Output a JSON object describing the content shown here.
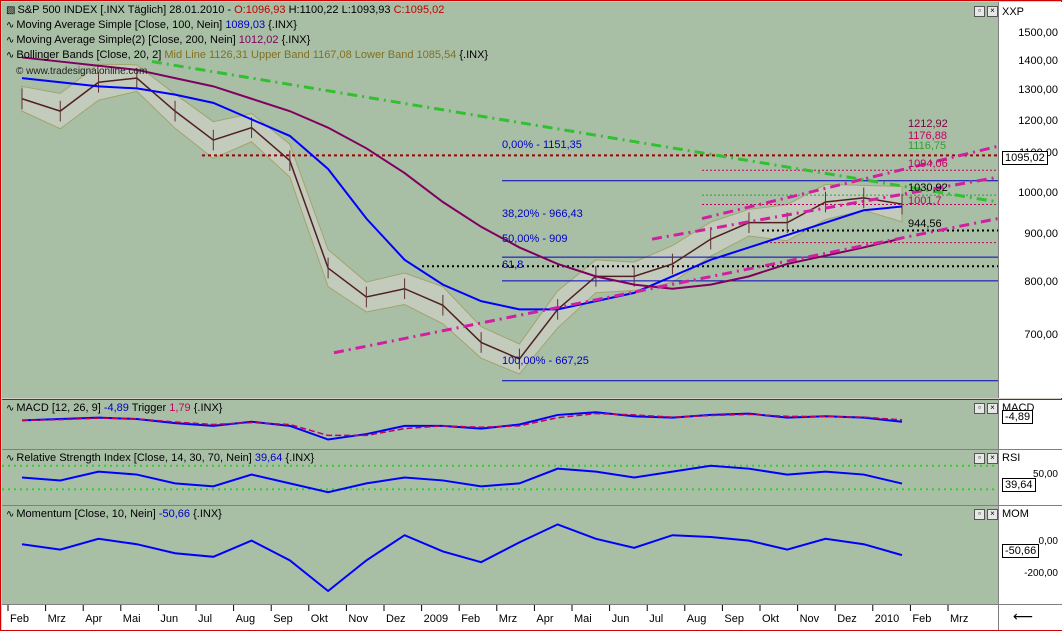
{
  "main_pane": {
    "legend": [
      {
        "icon": "candle-icon",
        "text": "S&P 500 INDEX [.INX  Täglich] 28.01.2010 - ",
        "parts": [
          {
            "label": "O:",
            "value": "1096,93",
            "color": "#c00000"
          },
          {
            "label": " H:",
            "value": "1100,22",
            "color": "#000000"
          },
          {
            "label": " L:",
            "value": "1093,93",
            "color": "#000000"
          },
          {
            "label": " C:",
            "value": "1095,02",
            "color": "#c00000"
          }
        ]
      },
      {
        "icon": "line-icon",
        "text": "Moving Average Simple [Close, 100, Nein] ",
        "value": "1089,03",
        "value_color": "#0000c0",
        "suffix": " {.INX}"
      },
      {
        "icon": "line-icon",
        "text": "Moving Average Simple(2) [Close, 200, Nein] ",
        "value": "1012,02",
        "value_color": "#800060",
        "suffix": " {.INX}"
      },
      {
        "icon": "line-icon",
        "text": "Bollinger Bands [Close, 20, 2] ",
        "value": "Mid Line 1126,31 Upper Band 1167,08 Lower Band 1085,54",
        "value_color": "#807020",
        "suffix": " {.INX}"
      }
    ],
    "watermark": "© www.tradesignalonline.com",
    "fib_labels": [
      "0,00% - 1151,35",
      "38,20% - 966,43",
      "50,00% - 909",
      "61,8",
      "100,00% - 667,25"
    ],
    "level_labels": [
      {
        "text": "1212,92",
        "color": "#800040"
      },
      {
        "text": "1176,88",
        "color": "#c00060"
      },
      {
        "text": "1116,75",
        "color": "#30a030"
      },
      {
        "text": "1094,06",
        "color": "#c00060"
      },
      {
        "text": "1030,92",
        "color": "#000000"
      },
      {
        "text": "1001,7",
        "color": "#c00060"
      },
      {
        "text": "944,56",
        "color": "#000000"
      }
    ]
  },
  "axis_main": {
    "name": "XXP",
    "ticks": [
      "1500,00",
      "1400,00",
      "1300,00",
      "1200,00",
      "1100,00",
      "1000,00",
      "900,00",
      "800,00",
      "700,00"
    ],
    "last": "1095,02"
  },
  "macd_pane": {
    "legend": "MACD [12, 26, 9] ",
    "value": "-4,89",
    "trigger": " Trigger ",
    "trigger_value": "1,79",
    "suffix": " {.INX}",
    "axis_name": "MACD",
    "last": "-4,89"
  },
  "rsi_pane": {
    "legend": "Relative Strength Index [Close, 14, 30, 70, Nein] ",
    "value": "39,64",
    "suffix": " {.INX}",
    "axis_name": "RSI",
    "tick": "50,00",
    "last": "39,64"
  },
  "mom_pane": {
    "legend": "Momentum [Close, 10, Nein] ",
    "value": "-50,66",
    "suffix": " {.INX}",
    "axis_name": "MOM",
    "ticks": [
      "0,00",
      "-200,00"
    ],
    "last": "-50,66"
  },
  "x_axis": {
    "labels": [
      "Feb",
      "Mrz",
      "Apr",
      "Mai",
      "Jun",
      "Jul",
      "Aug",
      "Sep",
      "Okt",
      "Nov",
      "Dez",
      "2009",
      "Feb",
      "Mrz",
      "Apr",
      "Mai",
      "Jun",
      "Jul",
      "Aug",
      "Sep",
      "Okt",
      "Nov",
      "Dez",
      "2010",
      "Feb",
      "Mrz"
    ]
  },
  "colors": {
    "pane_bg": "#a8bfa6",
    "ma100": "#0000ff",
    "ma200": "#800060",
    "boll": "#a0a060",
    "trend": "#d020a0",
    "green_trend": "#30c030",
    "resist": "#a00000"
  },
  "chart_data": [
    {
      "type": "line",
      "title": "S&P 500 INDEX [.INX  Täglich]",
      "x": [
        "2008-02",
        "2008-03",
        "2008-04",
        "2008-05",
        "2008-06",
        "2008-07",
        "2008-08",
        "2008-09",
        "2008-10",
        "2008-11",
        "2008-12",
        "2009-01",
        "2009-02",
        "2009-03",
        "2009-04",
        "2009-05",
        "2009-06",
        "2009-07",
        "2009-08",
        "2009-09",
        "2009-10",
        "2009-11",
        "2009-12",
        "2010-01"
      ],
      "series": [
        {
          "name": "S&P 500 INDEX",
          "values": [
            1350,
            1320,
            1390,
            1400,
            1320,
            1250,
            1280,
            1200,
            940,
            870,
            890,
            850,
            760,
            720,
            840,
            920,
            920,
            950,
            1010,
            1050,
            1050,
            1100,
            1110,
            1095
          ]
        },
        {
          "name": "Moving Average Simple [Close, 100, Nein]",
          "values": [
            1400,
            1390,
            1380,
            1375,
            1360,
            1340,
            1300,
            1260,
            1180,
            1060,
            960,
            900,
            860,
            840,
            840,
            860,
            880,
            920,
            960,
            990,
            1020,
            1050,
            1080,
            1089.03
          ]
        },
        {
          "name": "Moving Average Simple(2) [Close, 200, Nein]",
          "values": [
            1450,
            1440,
            1430,
            1420,
            1400,
            1380,
            1350,
            1320,
            1280,
            1230,
            1170,
            1100,
            1040,
            990,
            950,
            920,
            900,
            890,
            900,
            920,
            950,
            970,
            990,
            1012.02
          ]
        }
      ],
      "fibonacci": [
        {
          "label": "0,00%",
          "value": 1151.35
        },
        {
          "label": "38,20%",
          "value": 966.43
        },
        {
          "label": "50,00%",
          "value": 909
        },
        {
          "label": "61,8",
          "value": null
        },
        {
          "label": "100,00%",
          "value": 667.25
        }
      ],
      "levels": [
        1212.92,
        1176.88,
        1116.75,
        1094.06,
        1030.92,
        1001.7,
        944.56
      ],
      "last": 1095.02,
      "ylim": [
        640,
        1560
      ],
      "yticks": [
        700,
        800,
        900,
        1000,
        1100,
        1200,
        1300,
        1400,
        1500
      ],
      "ylabel": "",
      "grid": false
    },
    {
      "type": "line",
      "title": "MACD [12, 26, 9]",
      "series": [
        {
          "name": "MACD",
          "values": [
            0,
            5,
            10,
            5,
            -10,
            -20,
            -5,
            -20,
            -70,
            -50,
            -20,
            -20,
            -30,
            -15,
            20,
            30,
            15,
            10,
            20,
            25,
            10,
            15,
            10,
            -4.89
          ]
        },
        {
          "name": "Trigger",
          "values": [
            0,
            3,
            8,
            6,
            -6,
            -15,
            -8,
            -15,
            -55,
            -55,
            -30,
            -20,
            -25,
            -20,
            10,
            25,
            20,
            12,
            18,
            22,
            15,
            14,
            12,
            1.79
          ]
        }
      ]
    },
    {
      "type": "line",
      "title": "Relative Strength Index [Close, 14, 30, 70, Nein]",
      "series": [
        {
          "name": "RSI",
          "values": [
            50,
            45,
            60,
            55,
            40,
            35,
            55,
            40,
            25,
            40,
            50,
            45,
            35,
            40,
            65,
            60,
            50,
            60,
            70,
            65,
            55,
            60,
            55,
            39.64
          ]
        }
      ],
      "levels": [
        30,
        70
      ],
      "yticks": [
        50
      ]
    },
    {
      "type": "line",
      "title": "Momentum [Close, 10, Nein]",
      "series": [
        {
          "name": "Momentum",
          "values": [
            10,
            -20,
            40,
            10,
            -40,
            -60,
            30,
            -80,
            -250,
            -80,
            60,
            -30,
            -90,
            20,
            120,
            40,
            -10,
            60,
            50,
            30,
            -20,
            40,
            10,
            -50.66
          ]
        }
      ],
      "yticks": [
        0,
        -200
      ]
    }
  ]
}
